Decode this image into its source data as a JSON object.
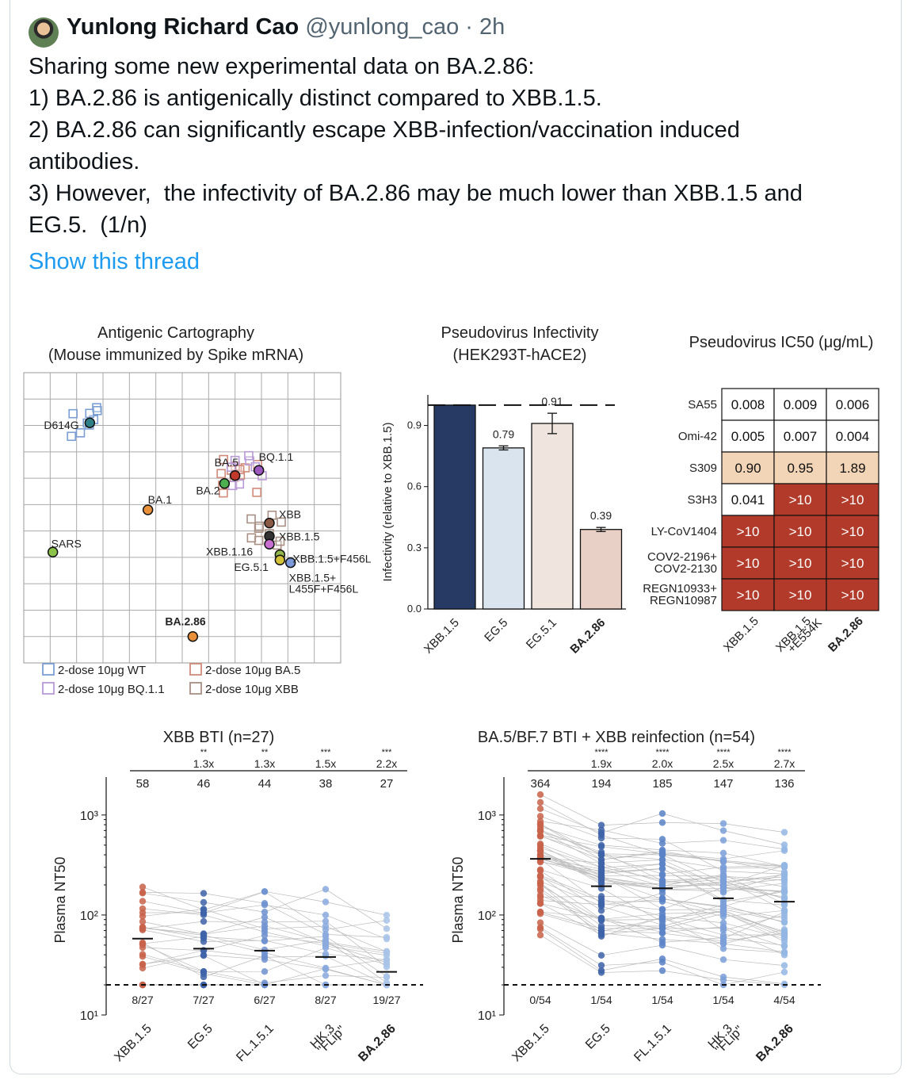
{
  "tweet": {
    "author_name": "Yunlong Richard Cao",
    "author_handle": "@yunlong_cao",
    "dot": "·",
    "time": "2h",
    "lines": [
      "Sharing some new experimental data on BA.2.86:",
      "1) BA.2.86 is antigenically distinct compared to XBB.1.5.",
      "2) BA.2.86 can significantly escape XBB-infection/vaccination induced",
      "antibodies.",
      "3) However,  the infectivity of BA.2.86 may be much lower than XBB.1.5 and",
      "EG.5.  (1/n)"
    ],
    "show_thread": "Show this thread"
  },
  "colors": {
    "link": "#1d9bf0",
    "muted": "#536471",
    "heat_high": "#b23a2a",
    "heat_mid": "#f2d4b6"
  },
  "chart_data": [
    {
      "type": "scatter",
      "title": "Antigenic Cartography",
      "subtitle": "(Mouse immunized by Spike mRNA)",
      "grid": true,
      "points": [
        {
          "label": "D614G",
          "x": 2.5,
          "y": 9.1,
          "color": "#2f7f86"
        },
        {
          "label": "BQ.1.1",
          "x": 8.9,
          "y": 7.3,
          "color": "#9b59c0"
        },
        {
          "label": "BA.5",
          "x": 8.0,
          "y": 7.1,
          "color": "#c0392b"
        },
        {
          "label": "BA.2",
          "x": 7.6,
          "y": 6.8,
          "color": "#4caf50"
        },
        {
          "label": "BA.1",
          "x": 4.7,
          "y": 5.8,
          "color": "#e8903a"
        },
        {
          "label": "XBB",
          "x": 9.3,
          "y": 5.3,
          "color": "#8b5a45"
        },
        {
          "label": "XBB.1.5",
          "x": 9.3,
          "y": 4.8,
          "color": "#333333"
        },
        {
          "label": "XBB.1.16",
          "x": 9.3,
          "y": 4.5,
          "color": "#c76fd1"
        },
        {
          "label": "XBB.1.5+F456L",
          "x": 9.7,
          "y": 4.1,
          "color": "#93b84c"
        },
        {
          "label": "EG.5.1",
          "x": 9.7,
          "y": 3.9,
          "color": "#d4c23a"
        },
        {
          "label": "XBB.1.5+ L455F+F456L",
          "x": 10.1,
          "y": 3.8,
          "color": "#7c9ad9"
        },
        {
          "label": "SARS",
          "x": 1.1,
          "y": 4.2,
          "color": "#8bc34a"
        },
        {
          "label": "BA.2.86",
          "x": 6.4,
          "y": 1.0,
          "color": "#e8903a"
        }
      ],
      "legend": [
        "2-dose 10μg WT",
        "2-dose 10μg BA.5",
        "2-dose 10μg BQ.1.1",
        "2-dose 10μg XBB"
      ],
      "legend_colors": [
        "#7b9fd3",
        "#d08a7a",
        "#b79ad6",
        "#a89084"
      ]
    },
    {
      "type": "bar",
      "title": "Pseudovirus Infectivity",
      "subtitle": "(HEK293T-hACE2)",
      "ylabel": "Infectivity (relative to XBB.1.5)",
      "categories": [
        "XBB.1.5",
        "EG.5",
        "EG.5.1",
        "BA.2.86"
      ],
      "values": [
        1.0,
        0.79,
        0.91,
        0.39
      ],
      "value_labels": [
        "",
        "0.79",
        "0.91",
        "0.39"
      ],
      "colors": [
        "#263a63",
        "#d9e4ee",
        "#efe4de",
        "#e8d0c6"
      ],
      "yticks": [
        "0.0",
        "0.3",
        "0.6",
        "0.9"
      ],
      "ylim": [
        0,
        1.05
      ],
      "reference_line": 1.0
    },
    {
      "type": "heatmap",
      "title": "Pseudovirus IC50 (μg/mL)",
      "rows": [
        "SA55",
        "Omi-42",
        "S309",
        "S3H3",
        "LY-CoV1404",
        "COV2-2196+ COV2-2130",
        "REGN10933+ REGN10987"
      ],
      "columns": [
        "XBB.1.5",
        "XBB.1.5 +E554K",
        "BA.2.86"
      ],
      "values": [
        [
          "0.008",
          "0.009",
          "0.006"
        ],
        [
          "0.005",
          "0.007",
          "0.004"
        ],
        [
          "0.90",
          "0.95",
          "1.89"
        ],
        [
          "0.041",
          ">10",
          ">10"
        ],
        [
          ">10",
          ">10",
          ">10"
        ],
        [
          ">10",
          ">10",
          ">10"
        ],
        [
          ">10",
          ">10",
          ">10"
        ]
      ]
    },
    {
      "type": "scatter",
      "title": "XBB BTI (n=27)",
      "ylabel": "Plasma NT50",
      "categories": [
        "XBB.1.5",
        "EG.5",
        "FL.1.5.1",
        "HK.3 \"FLip\"",
        "BA.2.86"
      ],
      "geomean": [
        58,
        46,
        44,
        38,
        27
      ],
      "fold": [
        "",
        "1.3x",
        "1.3x",
        "1.5x",
        "2.2x"
      ],
      "significance": [
        "",
        "**",
        "**",
        "***",
        "***"
      ],
      "below_lod": [
        "8/27",
        "7/27",
        "6/27",
        "8/27",
        "19/27"
      ],
      "yticks": [
        "10¹",
        "10²",
        "10³"
      ],
      "limit_of_detection": 20,
      "colors": [
        "#c8614a",
        "#3e63a8",
        "#6f92cf",
        "#89a9dd",
        "#a9c3e8"
      ]
    },
    {
      "type": "scatter",
      "title": "BA.5/BF.7 BTI + XBB reinfection (n=54)",
      "ylabel": "Plasma NT50",
      "categories": [
        "XBB.1.5",
        "EG.5",
        "FL.1.5.1",
        "HK.3 \"FLip\"",
        "BA.2.86"
      ],
      "geomean": [
        364,
        194,
        185,
        147,
        136
      ],
      "fold": [
        "",
        "1.9x",
        "2.0x",
        "2.5x",
        "2.7x"
      ],
      "significance": [
        "",
        "****",
        "****",
        "****",
        "****"
      ],
      "below_lod": [
        "0/54",
        "1/54",
        "1/54",
        "1/54",
        "4/54"
      ],
      "yticks": [
        "10¹",
        "10²",
        "10³"
      ],
      "limit_of_detection": 20,
      "colors": [
        "#c8614a",
        "#3e63a8",
        "#5b83c7",
        "#7b9fd8",
        "#94b6e3"
      ]
    }
  ]
}
